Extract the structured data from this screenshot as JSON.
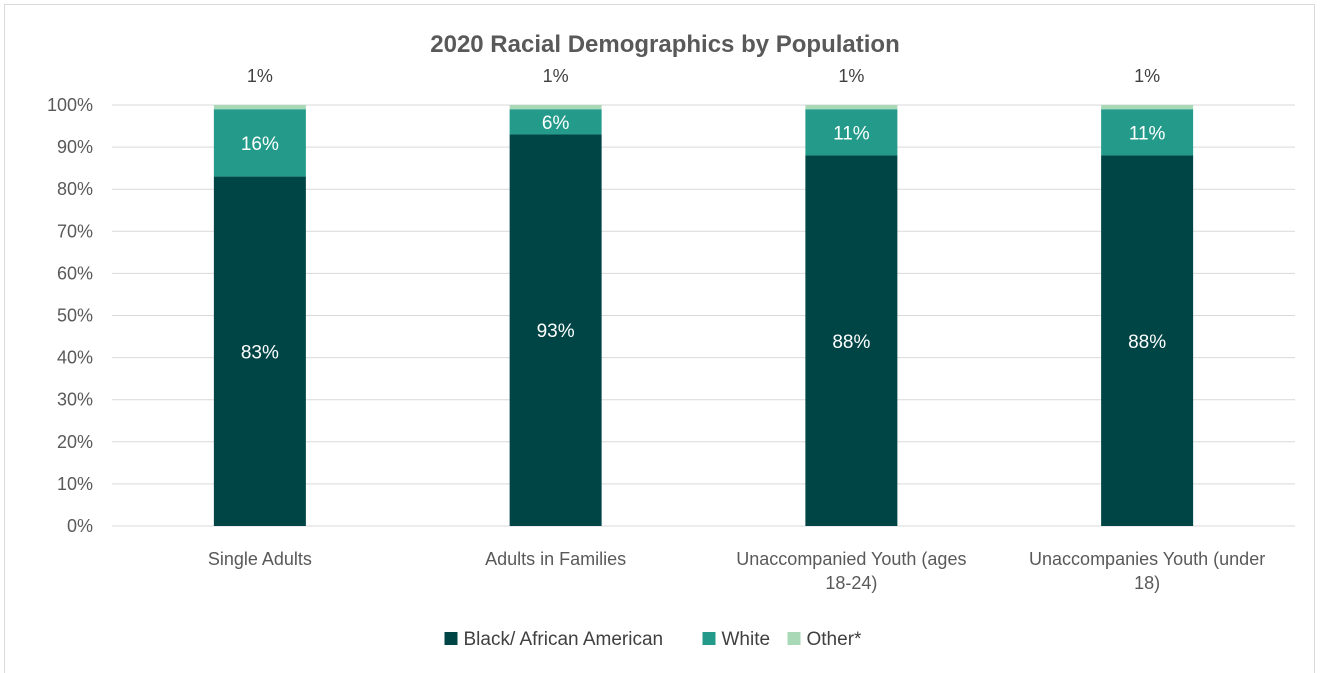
{
  "chart_data": {
    "type": "bar",
    "stacked": true,
    "title": "2020 Racial Demographics by Population",
    "categories": [
      [
        "Single Adults"
      ],
      [
        "Adults in Families"
      ],
      [
        "Unaccompanied Youth (ages",
        "18-24)"
      ],
      [
        "Unaccompanies Youth (under",
        "18)"
      ]
    ],
    "series": [
      {
        "name": "Black/ African American",
        "color": "#004546",
        "values": [
          83,
          93,
          88,
          88
        ],
        "labels": [
          "83%",
          "93%",
          "88%",
          "88%"
        ]
      },
      {
        "name": "White",
        "color": "#249b8a",
        "values": [
          16,
          6,
          11,
          11
        ],
        "labels": [
          "16%",
          "6%",
          "11%",
          "11%"
        ]
      },
      {
        "name": "Other*",
        "color": "#a8d8b5",
        "values": [
          1,
          1,
          1,
          1
        ],
        "labels": [
          "1%",
          "1%",
          "1%",
          "1%"
        ]
      }
    ],
    "ylim": [
      0,
      100
    ],
    "yticks": [
      "0%",
      "10%",
      "20%",
      "30%",
      "40%",
      "50%",
      "60%",
      "70%",
      "80%",
      "90%",
      "100%"
    ],
    "grid": true,
    "legend_position": "bottom"
  }
}
